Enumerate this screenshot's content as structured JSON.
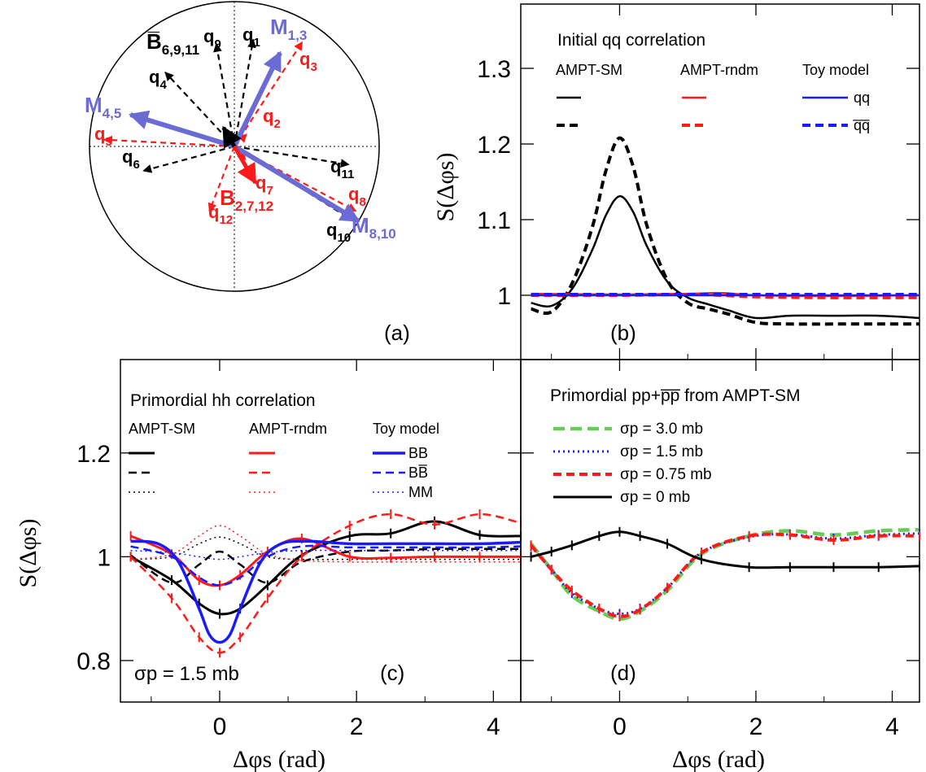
{
  "colors": {
    "black": "#000000",
    "red": "#ff1a1a",
    "blue": "#1a1aff",
    "green": "#66cc55",
    "purple": "#6b6bd6"
  },
  "panel_a": {
    "label": "(a)",
    "arrows": [
      {
        "id": "q1",
        "angle": 80,
        "len": 0.75,
        "color": "black",
        "style": "dashed",
        "label": "q",
        "sub": "1"
      },
      {
        "id": "q9",
        "angle": 100,
        "len": 0.72,
        "color": "black",
        "style": "dashed",
        "label": "q",
        "sub": "9"
      },
      {
        "id": "q4",
        "angle": 133,
        "len": 0.7,
        "color": "black",
        "style": "dashed",
        "label": "q",
        "sub": "4"
      },
      {
        "id": "q6",
        "angle": 195,
        "len": 0.65,
        "color": "black",
        "style": "dashed",
        "label": "q",
        "sub": "6"
      },
      {
        "id": "q11",
        "angle": -9,
        "len": 0.8,
        "color": "black",
        "style": "dashed",
        "label": "q",
        "sub": "11"
      },
      {
        "id": "q10",
        "angle": -32,
        "len": 0.95,
        "color": "black",
        "style": "dashed",
        "label": "q",
        "sub": "10"
      },
      {
        "id": "q3",
        "angle": 57,
        "len": 0.86,
        "color": "red",
        "style": "dashed",
        "label": "q",
        "sub": "3"
      },
      {
        "id": "q5",
        "angle": 177,
        "len": 0.9,
        "color": "red",
        "style": "dashed",
        "label": "q",
        "sub": "5"
      },
      {
        "id": "q8",
        "angle": -28,
        "len": 0.95,
        "color": "red",
        "style": "dashed",
        "label": "q",
        "sub": "8"
      },
      {
        "id": "q12",
        "angle": -111,
        "len": 0.48,
        "color": "red",
        "style": "dashed",
        "label": "q",
        "sub": "12"
      },
      {
        "id": "q2",
        "angle": 45,
        "len": 0.12,
        "color": "red",
        "style": "dashed",
        "label": "q",
        "sub": "2"
      },
      {
        "id": "q7",
        "angle": -50,
        "len": 0.12,
        "color": "red",
        "style": "dashed",
        "label": "q",
        "sub": "7"
      },
      {
        "id": "M13",
        "angle": 64,
        "len": 0.72,
        "color": "purple",
        "style": "solid",
        "label": "M",
        "sub": "1,3"
      },
      {
        "id": "M45",
        "angle": 163,
        "len": 0.75,
        "color": "purple",
        "style": "solid",
        "label": "M",
        "sub": "4,5"
      },
      {
        "id": "M810",
        "angle": -31,
        "len": 1.0,
        "color": "purple",
        "style": "solid",
        "label": "M",
        "sub": "8,10"
      },
      {
        "id": "B6911",
        "angle": 120,
        "len": 0.15,
        "color": "black",
        "style": "solid",
        "label": "B̅",
        "sub": "6,9,11"
      },
      {
        "id": "B2712",
        "angle": -60,
        "len": 0.29,
        "color": "red",
        "style": "solid",
        "label": "B",
        "sub": "2,7,12"
      }
    ]
  },
  "chart_data": [
    {
      "id": "b",
      "type": "line",
      "panel_label": "(b)",
      "legend_title": "Initial qq correlation",
      "legend_headers": [
        "AMPT-SM",
        "AMPT-rndm",
        "Toy model"
      ],
      "legend_labels": [
        "qq",
        "q̅q̅"
      ],
      "ylabel": "S(Δφs)",
      "xlim": [
        -1.45,
        4.4
      ],
      "ylim": [
        0.915,
        1.385
      ],
      "xticks": [
        0,
        2,
        4
      ],
      "yticks": [
        1,
        1.1,
        1.2,
        1.3
      ],
      "ytick_labels": [
        "1",
        "1.1",
        "1.2",
        "1.3"
      ],
      "series": [
        {
          "name": "AMPT-SM qq",
          "color": "black",
          "dash": "solid",
          "width": 2.5,
          "x": [
            -1.3,
            -1.0,
            -0.7,
            -0.4,
            -0.2,
            0,
            0.2,
            0.4,
            0.7,
            1.0,
            1.3,
            1.6,
            2.0,
            2.5,
            3.14,
            3.8,
            4.4
          ],
          "y": [
            0.99,
            0.986,
            1.008,
            1.06,
            1.106,
            1.131,
            1.11,
            1.065,
            1.018,
            0.997,
            0.988,
            0.98,
            0.97,
            0.973,
            0.973,
            0.973,
            0.97
          ]
        },
        {
          "name": "AMPT-SM qq̅",
          "color": "black",
          "dash": "dashed",
          "width": 4,
          "x": [
            -1.3,
            -1.0,
            -0.7,
            -0.4,
            -0.2,
            0,
            0.2,
            0.4,
            0.7,
            1.0,
            1.3,
            1.6,
            2.0,
            2.5,
            3.14,
            3.8,
            4.4
          ],
          "y": [
            0.982,
            0.978,
            1.015,
            1.09,
            1.165,
            1.208,
            1.17,
            1.092,
            1.02,
            0.99,
            0.982,
            0.975,
            0.964,
            0.962,
            0.962,
            0.962,
            0.962
          ]
        },
        {
          "name": "AMPT-rndm qq",
          "color": "red",
          "dash": "solid",
          "width": 2.5,
          "x": [
            -1.3,
            0,
            1.0,
            1.5,
            2.0,
            3.0,
            4.4
          ],
          "y": [
            1.002,
            1.001,
            1.002,
            1.003,
            1.0,
            0.999,
            1.0
          ]
        },
        {
          "name": "AMPT-rndm qq̅",
          "color": "red",
          "dash": "dashed",
          "width": 4,
          "x": [
            -1.3,
            0,
            1.0,
            1.5,
            2.0,
            3.0,
            4.4
          ],
          "y": [
            1.0,
            1.0,
            1.001,
            1.0,
            0.998,
            0.997,
            0.997
          ]
        },
        {
          "name": "Toy qq",
          "color": "blue",
          "dash": "solid",
          "width": 2.5,
          "x": [
            -1.3,
            4.4
          ],
          "y": [
            1.0,
            1.0
          ]
        },
        {
          "name": "Toy qq̅",
          "color": "blue",
          "dash": "dashed",
          "width": 4,
          "x": [
            -1.3,
            4.4
          ],
          "y": [
            1.001,
            1.001
          ]
        }
      ]
    },
    {
      "id": "c",
      "type": "line",
      "panel_label": "(c)",
      "legend_title": "Primordial hh correlation",
      "legend_headers": [
        "AMPT-SM",
        "AMPT-rndm",
        "Toy model"
      ],
      "legend_labels": [
        "BB",
        "BB̅",
        "MM"
      ],
      "annotation": "σp = 1.5 mb",
      "ylabel": "S(Δφs)",
      "xlabel": "Δφs (rad)",
      "xlim": [
        -1.45,
        4.4
      ],
      "ylim": [
        0.72,
        1.38
      ],
      "xticks": [
        0,
        2,
        4
      ],
      "yticks": [
        0.8,
        1,
        1.2
      ],
      "xtick_labels": [
        "0",
        "2",
        "4"
      ],
      "ytick_labels": [
        "0.8",
        "1",
        "1.2"
      ],
      "series": [
        {
          "name": "AMPT-SM BB",
          "color": "black",
          "dash": "solid",
          "width": 3,
          "err": true,
          "x": [
            -1.3,
            -0.7,
            -0.3,
            0,
            0.3,
            0.7,
            1.2,
            1.9,
            2.5,
            3.14,
            3.8,
            4.4
          ],
          "y": [
            1.0,
            0.955,
            0.91,
            0.89,
            0.9,
            0.945,
            1.003,
            1.04,
            1.045,
            1.068,
            1.042,
            1.04
          ]
        },
        {
          "name": "AMPT-SM BB̅",
          "color": "black",
          "dash": "dashed",
          "width": 2.5,
          "x": [
            -1.3,
            -0.7,
            -0.3,
            0,
            0.3,
            0.7,
            1.2,
            1.9,
            2.5,
            3.14,
            3.8,
            4.4
          ],
          "y": [
            1.003,
            0.95,
            0.985,
            1.01,
            0.985,
            0.95,
            0.99,
            1.01,
            1.012,
            1.015,
            1.015,
            1.015
          ]
        },
        {
          "name": "AMPT-SM MM",
          "color": "black",
          "dash": "dotted",
          "width": 1.5,
          "x": [
            -1.3,
            -0.7,
            -0.3,
            0,
            0.3,
            0.7,
            1.2,
            1.9,
            2.5,
            3.14,
            3.8,
            4.4
          ],
          "y": [
            0.995,
            1.0,
            1.025,
            1.038,
            1.025,
            1.0,
            0.995,
            0.995,
            0.995,
            0.995,
            0.995,
            0.995
          ]
        },
        {
          "name": "AMPT-rndm BB",
          "color": "red",
          "dash": "solid",
          "width": 3,
          "err": true,
          "x": [
            -1.3,
            -0.7,
            -0.3,
            0,
            0.3,
            0.7,
            1.2,
            1.9,
            2.5,
            3.14,
            3.8,
            4.4
          ],
          "y": [
            1.04,
            1.005,
            0.955,
            0.945,
            0.965,
            1.01,
            1.035,
            1.0,
            0.998,
            1.0,
            1.0,
            1.0
          ]
        },
        {
          "name": "AMPT-rndm BB̅",
          "color": "red",
          "dash": "dashed",
          "width": 2.5,
          "err": true,
          "x": [
            -1.3,
            -0.7,
            -0.3,
            0,
            0.3,
            0.7,
            1.2,
            1.9,
            2.5,
            3.14,
            3.8,
            4.4
          ],
          "y": [
            1.0,
            0.92,
            0.845,
            0.815,
            0.845,
            0.92,
            1.0,
            1.06,
            1.082,
            1.062,
            1.082,
            1.065
          ]
        },
        {
          "name": "AMPT-rndm MM",
          "color": "red",
          "dash": "dotted",
          "width": 1.5,
          "x": [
            -1.3,
            -0.7,
            -0.3,
            0,
            0.3,
            0.7,
            1.2,
            1.9,
            2.5,
            3.14,
            3.8,
            4.4
          ],
          "y": [
            0.995,
            1.005,
            1.04,
            1.06,
            1.04,
            1.005,
            0.993,
            0.99,
            0.99,
            0.99,
            0.99,
            0.99
          ]
        },
        {
          "name": "Toy BB",
          "color": "blue",
          "dash": "solid",
          "width": 3.5,
          "x": [
            -1.3,
            -0.9,
            -0.6,
            -0.3,
            -0.15,
            0,
            0.15,
            0.3,
            0.6,
            0.9,
            1.3,
            1.9,
            2.5,
            3.14,
            3.8,
            4.4
          ],
          "y": [
            1.03,
            1.025,
            0.99,
            0.9,
            0.85,
            0.835,
            0.85,
            0.9,
            0.99,
            1.025,
            1.03,
            1.025,
            1.025,
            1.025,
            1.025,
            1.028
          ]
        },
        {
          "name": "Toy BB̅",
          "color": "blue",
          "dash": "dashed",
          "width": 2.5,
          "x": [
            -1.3,
            -0.7,
            -0.3,
            0,
            0.3,
            0.7,
            1.2,
            1.9,
            2.5,
            3.14,
            3.8,
            4.4
          ],
          "y": [
            1.02,
            1.0,
            0.96,
            0.945,
            0.96,
            1.0,
            1.02,
            1.018,
            1.018,
            1.018,
            1.018,
            1.02
          ]
        },
        {
          "name": "Toy MM",
          "color": "blue",
          "dash": "dotted",
          "width": 1.5,
          "x": [
            -1.3,
            -0.7,
            -0.3,
            0,
            0.3,
            0.7,
            1.2,
            1.9,
            2.5,
            3.14,
            3.8,
            4.4
          ],
          "y": [
            1.012,
            1.008,
            1.0,
            0.995,
            1.0,
            1.008,
            1.012,
            1.012,
            1.012,
            1.012,
            1.012,
            1.012
          ]
        }
      ]
    },
    {
      "id": "d",
      "type": "line",
      "panel_label": "(d)",
      "legend_title": "Primordial pp+p̅p̅ from AMPT-SM",
      "legend_entries": [
        "σp = 3.0 mb",
        "σp = 1.5 mb",
        "σp = 0.75 mb",
        "σp = 0 mb"
      ],
      "xlabel": "Δφs (rad)",
      "xlim": [
        -1.45,
        4.4
      ],
      "ylim": [
        0.72,
        1.38
      ],
      "xticks": [
        0,
        2,
        4
      ],
      "yticks": [
        0.8,
        1,
        1.2
      ],
      "xtick_labels": [
        "0",
        "2",
        "4"
      ],
      "series": [
        {
          "name": "σp = 3.0 mb",
          "color": "green",
          "dash": "longdash",
          "width": 4.5,
          "x": [
            -1.3,
            -1.0,
            -0.7,
            -0.3,
            0,
            0.3,
            0.7,
            1.2,
            1.9,
            2.5,
            3.14,
            3.8,
            4.4
          ],
          "y": [
            1.025,
            0.975,
            0.925,
            0.895,
            0.88,
            0.895,
            0.935,
            1.005,
            1.04,
            1.05,
            1.042,
            1.05,
            1.052
          ]
        },
        {
          "name": "σp = 1.5 mb",
          "color": "blue",
          "dash": "dotted",
          "width": 3,
          "err": true,
          "x": [
            -1.3,
            -1.0,
            -0.7,
            -0.3,
            0,
            0.3,
            0.7,
            1.2,
            1.9,
            2.5,
            3.14,
            3.8,
            4.4
          ],
          "y": [
            1.02,
            0.975,
            0.93,
            0.9,
            0.89,
            0.9,
            0.94,
            1.008,
            1.038,
            1.043,
            1.035,
            1.042,
            1.045
          ]
        },
        {
          "name": "σp = 0.75 mb",
          "color": "red",
          "dash": "dashed",
          "width": 4,
          "err": true,
          "x": [
            -1.3,
            -1.0,
            -0.7,
            -0.3,
            0,
            0.3,
            0.7,
            1.2,
            1.9,
            2.5,
            3.14,
            3.8,
            4.4
          ],
          "y": [
            1.022,
            0.975,
            0.935,
            0.9,
            0.885,
            0.898,
            0.94,
            1.008,
            1.04,
            1.042,
            1.032,
            1.04,
            1.04
          ]
        },
        {
          "name": "σp = 0 mb",
          "color": "black",
          "dash": "solid",
          "width": 3,
          "err": true,
          "x": [
            -1.3,
            -1.0,
            -0.7,
            -0.3,
            0,
            0.3,
            0.7,
            1.2,
            1.9,
            2.5,
            3.14,
            3.8,
            4.4
          ],
          "y": [
            1.0,
            1.01,
            1.022,
            1.04,
            1.048,
            1.04,
            1.025,
            0.995,
            0.98,
            0.98,
            0.98,
            0.98,
            0.982
          ]
        }
      ]
    }
  ]
}
